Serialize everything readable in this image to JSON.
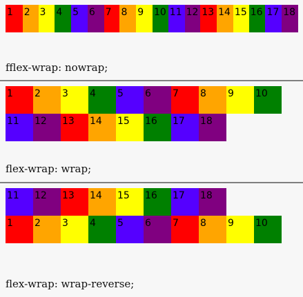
{
  "colors": {
    "red": "#ff0000",
    "orange": "#ffa500",
    "yellow": "#ffff00",
    "green": "#008000",
    "blue": "#5500ff",
    "purple": "#800080"
  },
  "color_cycle": [
    "red",
    "orange",
    "yellow",
    "green",
    "blue",
    "purple"
  ],
  "nowrap": {
    "caption": "fflex-wrap:  nowrap;",
    "items": [
      "1",
      "2",
      "3",
      "4",
      "5",
      "6",
      "7",
      "8",
      "9",
      "10",
      "11",
      "12",
      "13",
      "14",
      "15",
      "16",
      "17",
      "18"
    ]
  },
  "wrap": {
    "caption": "flex-wrap:  wrap;",
    "row1": [
      "1",
      "2",
      "3",
      "4",
      "5",
      "6",
      "7",
      "8",
      "9",
      "10"
    ],
    "row2": [
      "11",
      "12",
      "13",
      "14",
      "15",
      "16",
      "17",
      "18"
    ]
  },
  "wrap_reverse": {
    "caption": "flex-wrap:  wrap-reverse;",
    "row1": [
      "11",
      "12",
      "13",
      "14",
      "15",
      "16",
      "17",
      "18"
    ],
    "row2": [
      "1",
      "2",
      "3",
      "4",
      "5",
      "6",
      "7",
      "8",
      "9",
      "10"
    ]
  }
}
